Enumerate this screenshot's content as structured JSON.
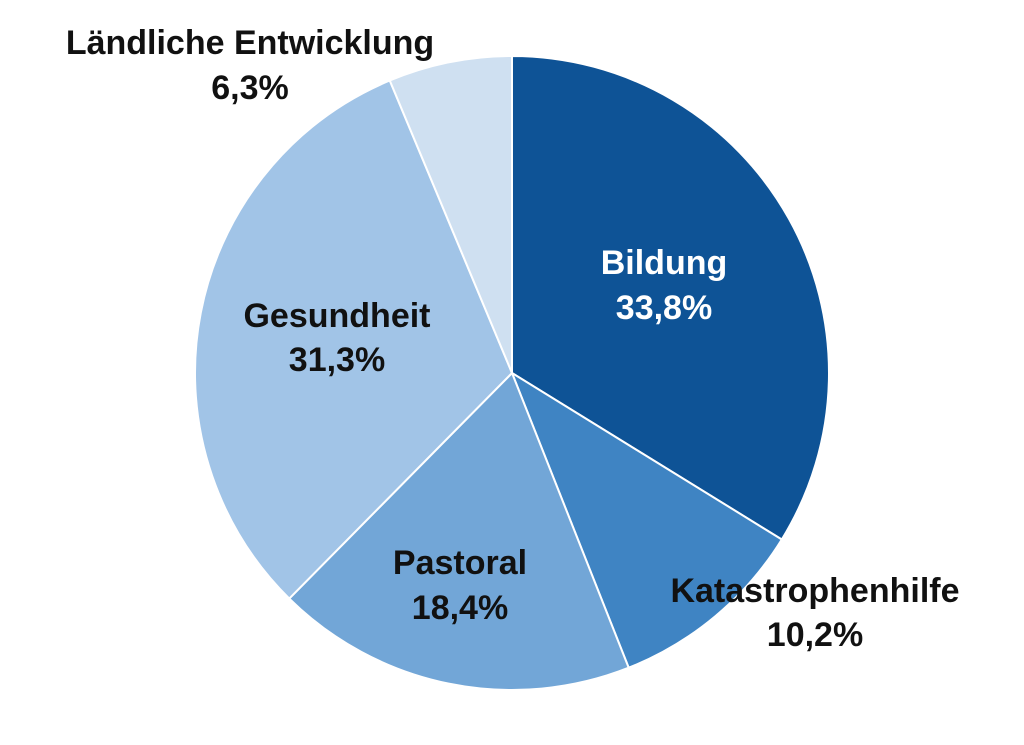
{
  "chart_data": {
    "type": "pie",
    "categories": [
      "Bildung",
      "Katastrophenhilfe",
      "Pastoral",
      "Gesundheit",
      "Ländliche Entwicklung"
    ],
    "values": [
      33.8,
      10.2,
      18.4,
      31.3,
      6.3
    ],
    "value_labels": [
      "33,8%",
      "10,2%",
      "18,4%",
      "31,3%",
      "6,3%"
    ],
    "colors": [
      "#0e5396",
      "#3f84c3",
      "#72a6d7",
      "#a1c4e7",
      "#cfe0f1"
    ]
  }
}
